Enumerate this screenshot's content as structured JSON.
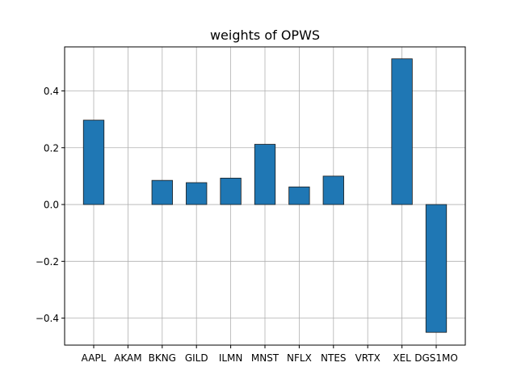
{
  "chart_data": {
    "type": "bar",
    "title": "weights of OPWS",
    "xlabel": "",
    "ylabel": "",
    "categories": [
      "AAPL",
      "AKAM",
      "BKNG",
      "GILD",
      "ILMN",
      "MNST",
      "NFLX",
      "NTES",
      "VRTX",
      "XEL",
      "DGS1MO"
    ],
    "values": [
      0.297,
      0.0,
      0.085,
      0.077,
      0.093,
      0.212,
      0.062,
      0.1,
      0.0,
      0.513,
      -0.45
    ],
    "ylim": [
      -0.495,
      0.555
    ],
    "yticks": [
      -0.4,
      -0.2,
      0.0,
      0.2,
      0.4
    ],
    "ytick_labels": [
      "−0.4",
      "−0.2",
      "0.0",
      "0.2",
      "0.4"
    ],
    "grid": true,
    "legend": "none",
    "colors": {
      "bar": "#1f77b4",
      "bar_edge": "#1a1a1a",
      "grid": "#b0b0b0",
      "axes": "#000000"
    }
  }
}
